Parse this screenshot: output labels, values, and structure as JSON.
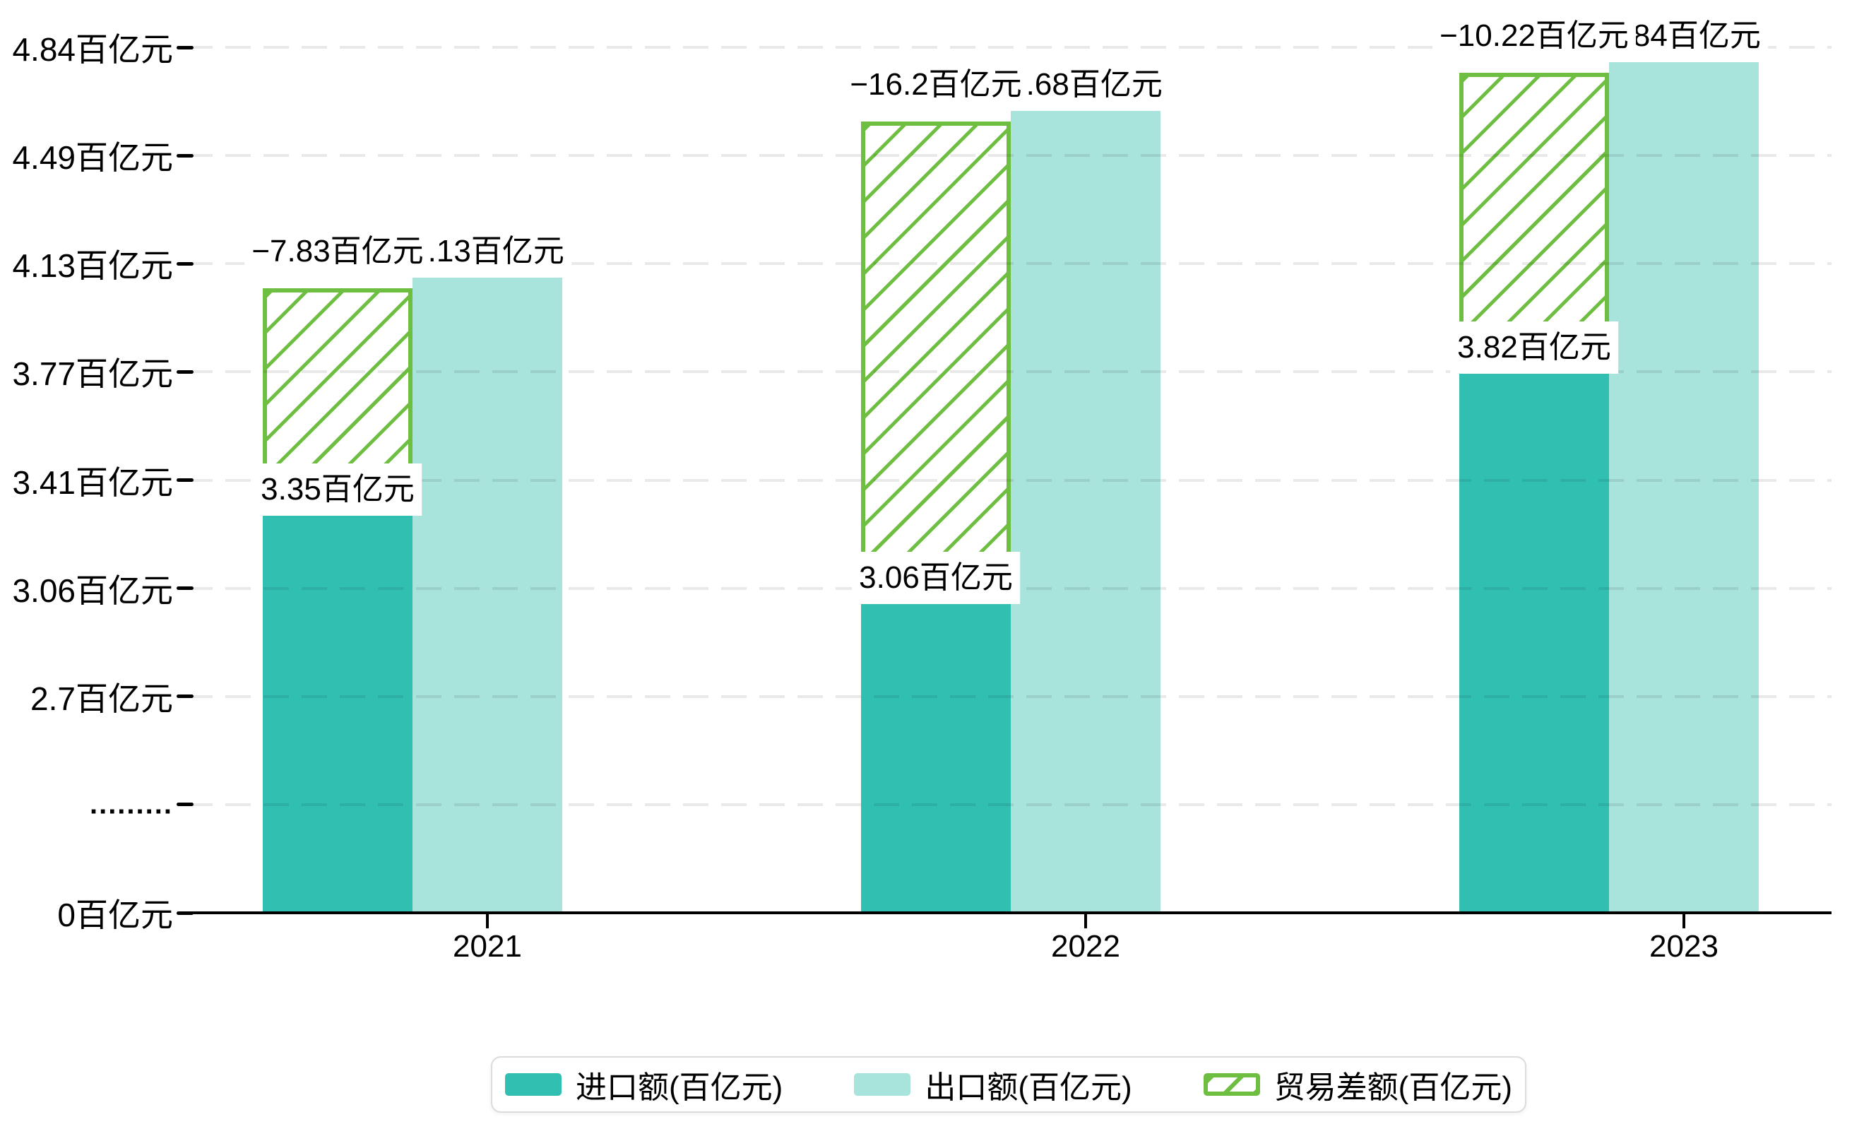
{
  "page": {
    "background": "#ffffff"
  },
  "chart_data": {
    "type": "bar",
    "title": "",
    "xlabel": "",
    "ylabel": "",
    "categories": [
      "2021",
      "2022",
      "2023"
    ],
    "series": [
      {
        "name": "进口额(百亿元)",
        "role": "import",
        "style": "solid",
        "color": "#31bfb2",
        "values": [
          3.35,
          3.06,
          3.82
        ],
        "data_labels": [
          "3.35百亿元",
          "3.06百亿元",
          "3.82百亿元"
        ]
      },
      {
        "name": "出口额(百亿元)",
        "role": "export",
        "style": "solid",
        "color": "#a8e4dc",
        "values": [
          4.13,
          4.68,
          4.84
        ],
        "data_labels": [
          "4.13百亿元",
          "4.68百亿元",
          "4.84百亿元"
        ],
        "visible_label_parts": [
          "13百亿元",
          "68百亿元",
          "84百亿元"
        ]
      },
      {
        "name": "贸易差额(百亿元)",
        "role": "trade-balance",
        "style": "hatched",
        "color": "#6ebe41",
        "values": [
          -7.83,
          -16.2,
          -10.22
        ],
        "data_labels": [
          "−7.83百亿元",
          "−16.2百亿元",
          "−10.22百亿元"
        ]
      }
    ],
    "y_axis": {
      "unit": "百亿元",
      "tick_labels": [
        "4.84百亿元",
        "4.49百亿元",
        "4.13百亿元",
        "3.77百亿元",
        "3.41百亿元",
        "3.06百亿元",
        "2.7百亿元",
        ".........",
        "0百亿元"
      ],
      "tick_values": [
        4.84,
        4.49,
        4.13,
        3.77,
        3.41,
        3.06,
        2.7,
        null,
        0
      ],
      "axis_break": true,
      "ylim": [
        0,
        4.84
      ],
      "grid": "horizontal-dashed"
    },
    "legend": {
      "position": "bottom",
      "items": [
        {
          "label": "进口额(百亿元)",
          "swatch": "solid",
          "color": "#31bfb2"
        },
        {
          "label": "出口额(百亿元)",
          "swatch": "solid",
          "color": "#a8e4dc"
        },
        {
          "label": "贸易差额(百亿元)",
          "swatch": "hatched",
          "color": "#6ebe41"
        }
      ]
    }
  },
  "colors": {
    "import_bar": "#31bfb2",
    "export_bar": "#a8e4dc",
    "balance_green": "#6ebe41",
    "gridline": "rgba(0,0,0,0.085)",
    "axis": "#000000",
    "label_background": "#ffffff",
    "text": "#000000",
    "legend_border": "#dcdcdc"
  }
}
